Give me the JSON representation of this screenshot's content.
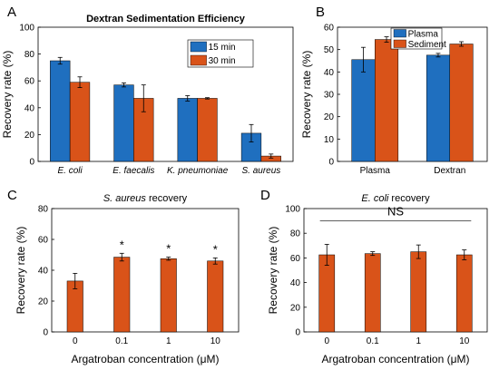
{
  "colors": {
    "blue": "#1f6fbf",
    "orange": "#d95319"
  },
  "chart_data": [
    {
      "letter": "A",
      "type": "bar",
      "title": "Dextran Sedimentation Efficiency",
      "title_italic": false,
      "title_prefix": "",
      "title_suffix": "",
      "ylabel": "Recovery rate (%)",
      "xlabel": "",
      "ylim": [
        0,
        100
      ],
      "yticks": [
        "0",
        "20",
        "40",
        "60",
        "80",
        "100"
      ],
      "categories": [
        "E. coli",
        "E. faecalis",
        "K. pneumoniae",
        "S. aureus"
      ],
      "categories_italic": true,
      "series": [
        {
          "name": "15 min",
          "color": "#1f6fbf",
          "values": [
            75,
            57,
            47,
            21
          ],
          "errors": [
            2.5,
            1.5,
            2,
            6.5
          ]
        },
        {
          "name": "30 min",
          "color": "#d95319",
          "values": [
            59,
            47,
            47,
            4
          ],
          "errors": [
            4,
            10,
            0.5,
            1.5
          ]
        }
      ],
      "legend": "top-right"
    },
    {
      "letter": "B",
      "type": "bar",
      "title": "",
      "ylabel": "Recovery rate (%)",
      "xlabel": "",
      "ylim": [
        0,
        60
      ],
      "yticks": [
        "0",
        "10",
        "20",
        "30",
        "40",
        "50",
        "60"
      ],
      "categories": [
        "Plasma",
        "Dextran"
      ],
      "categories_italic": false,
      "series": [
        {
          "name": "Plasma",
          "color": "#1f6fbf",
          "values": [
            45.5,
            47.5
          ],
          "errors": [
            5.5,
            0.8
          ]
        },
        {
          "name": "Sediment",
          "color": "#d95319",
          "values": [
            54.5,
            52.5
          ],
          "errors": [
            1.2,
            1
          ]
        }
      ],
      "legend": "top-left"
    },
    {
      "letter": "C",
      "type": "bar",
      "title_prefix": "S. aureus",
      "title_suffix": " recovery",
      "ylabel": "Recovery rate (%)",
      "xlabel": "Argatroban concentration (μM)",
      "ylim": [
        0,
        80
      ],
      "yticks": [
        "0",
        "20",
        "40",
        "60",
        "80"
      ],
      "categories": [
        "0",
        "0.1",
        "1",
        "10"
      ],
      "categories_italic": false,
      "series": [
        {
          "name": "",
          "color": "#d95319",
          "values": [
            33,
            48.5,
            47.5,
            46
          ],
          "errors": [
            5,
            2.5,
            1,
            2
          ]
        }
      ],
      "annotations": [
        "",
        "*",
        "*",
        "*"
      ]
    },
    {
      "letter": "D",
      "type": "bar",
      "title_prefix": "E. coli",
      "title_suffix": " recovery",
      "ylabel": "Recovery rate (%)",
      "xlabel": "Argatroban concentration (μM)",
      "ylim": [
        0,
        100
      ],
      "yticks": [
        "0",
        "20",
        "40",
        "60",
        "80",
        "100"
      ],
      "categories": [
        "0",
        "0.1",
        "1",
        "10"
      ],
      "categories_italic": false,
      "series": [
        {
          "name": "",
          "color": "#d95319",
          "values": [
            62.5,
            63.5,
            65,
            62.5
          ],
          "errors": [
            8.5,
            1.5,
            5.5,
            4
          ]
        }
      ],
      "significance": {
        "label": "NS",
        "value": 90
      }
    }
  ]
}
